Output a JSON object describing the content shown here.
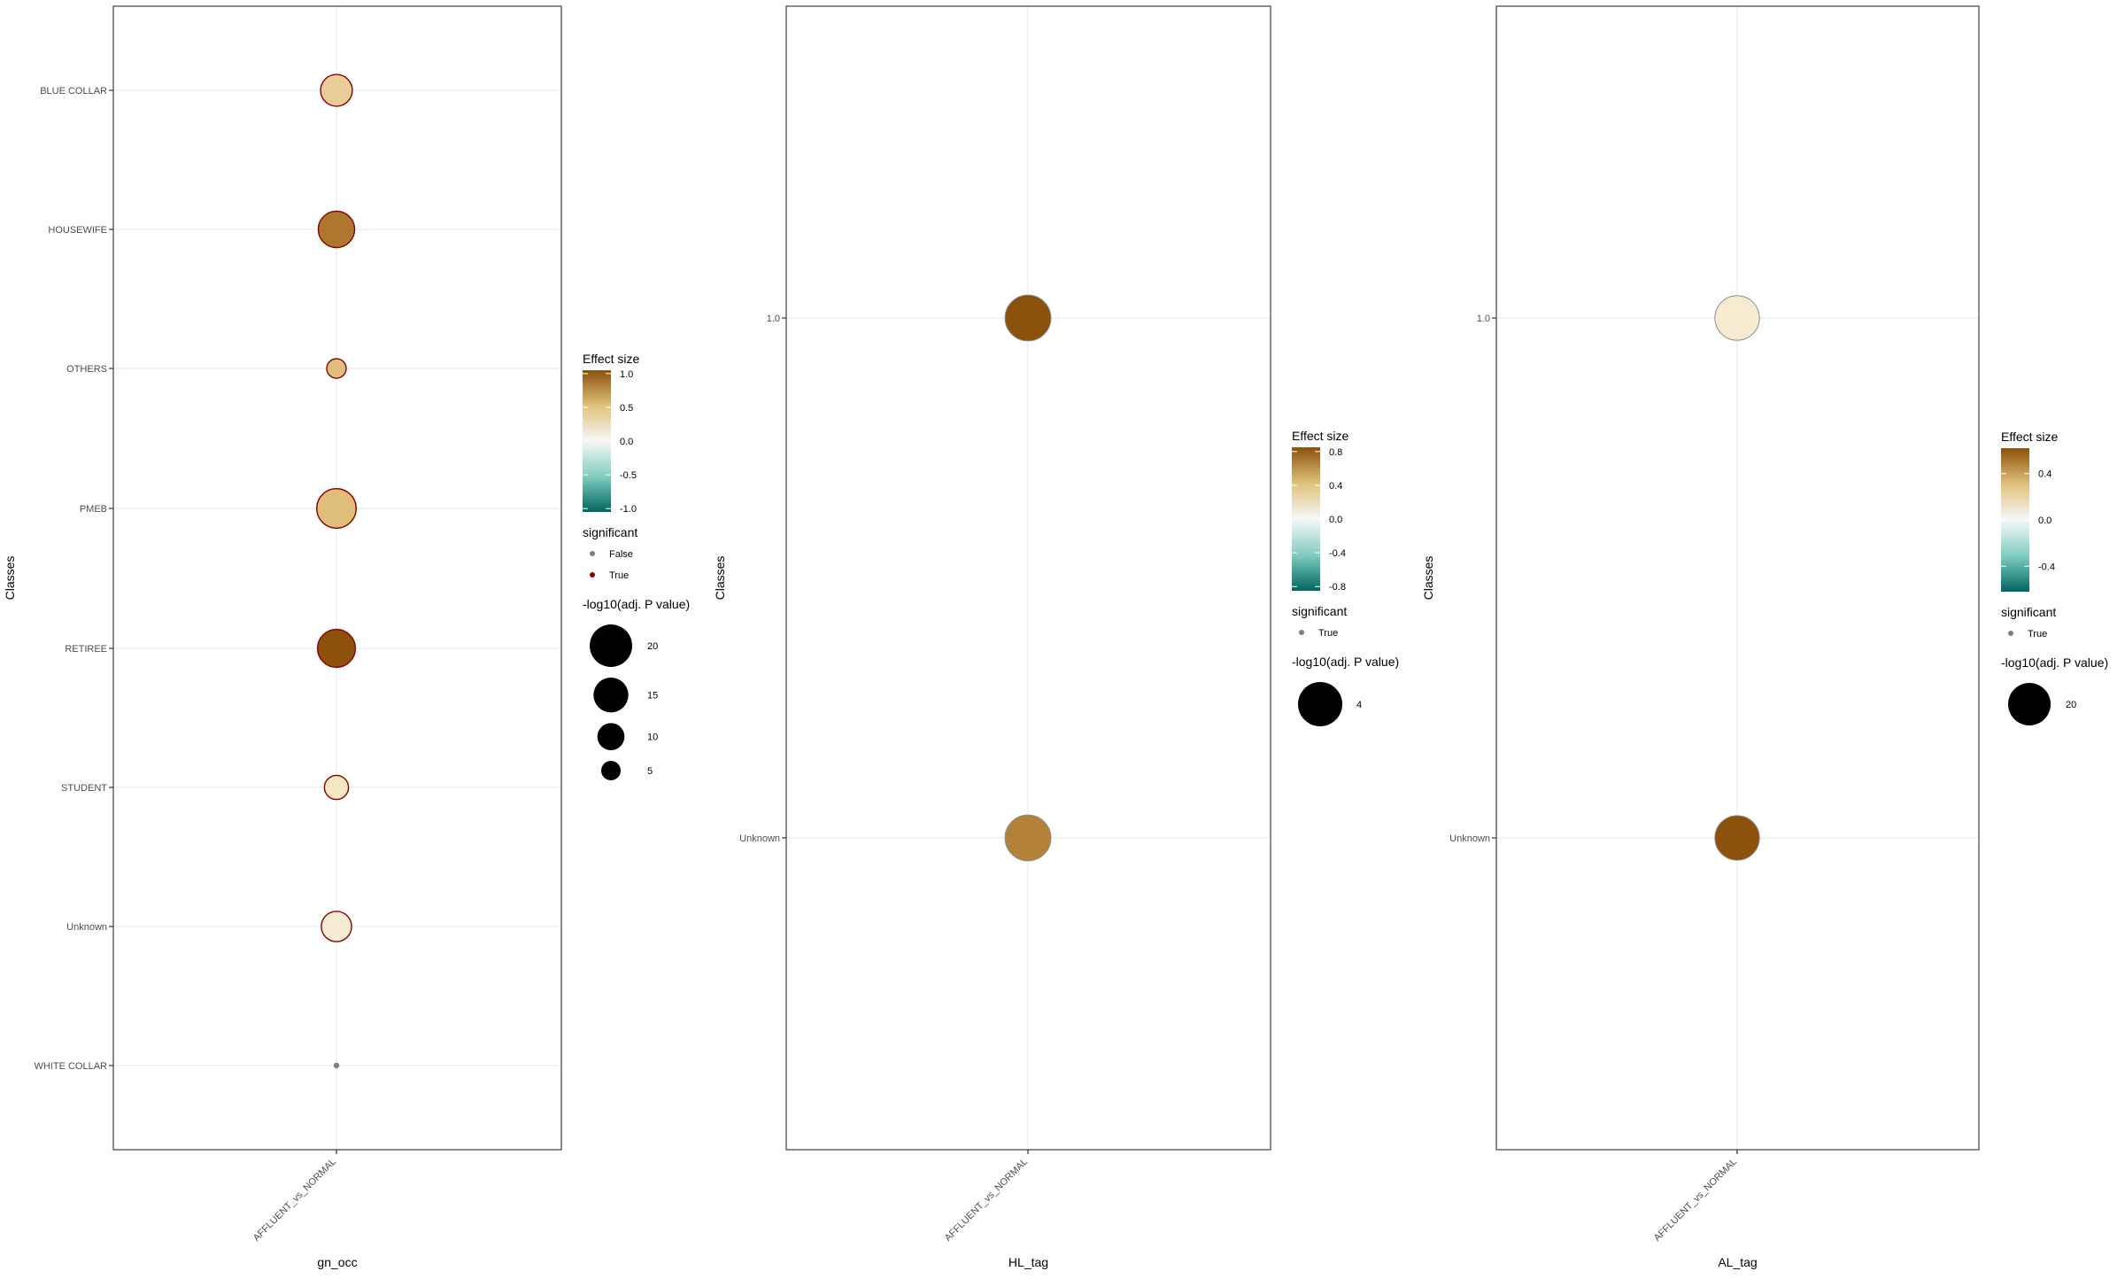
{
  "chart_data": [
    {
      "type": "scatter",
      "xlabel": "gn_occ",
      "ylabel": "Classes",
      "categories_x": [
        "AFFLUENT_vs_NORMAL"
      ],
      "categories_y": [
        "BLUE COLLAR",
        "HOUSEWIFE",
        "OTHERS",
        "PMEB",
        "RETIREE",
        "STUDENT",
        "Unknown",
        "WHITE COLLAR"
      ],
      "points": [
        {
          "x": "AFFLUENT_vs_NORMAL",
          "y": "BLUE COLLAR",
          "effect_size": 0.35,
          "neg_log10_p": 13,
          "significant": "True",
          "color": "#e8cd96"
        },
        {
          "x": "AFFLUENT_vs_NORMAL",
          "y": "HOUSEWIFE",
          "effect_size": 0.85,
          "neg_log10_p": 16,
          "significant": "True",
          "color": "#ad782e"
        },
        {
          "x": "AFFLUENT_vs_NORMAL",
          "y": "OTHERS",
          "effect_size": 0.45,
          "neg_log10_p": 5,
          "significant": "True",
          "color": "#e0be7d"
        },
        {
          "x": "AFFLUENT_vs_NORMAL",
          "y": "PMEB",
          "effect_size": 0.5,
          "neg_log10_p": 18,
          "significant": "True",
          "color": "#dfbd7b"
        },
        {
          "x": "AFFLUENT_vs_NORMAL",
          "y": "RETIREE",
          "effect_size": 1.0,
          "neg_log10_p": 17,
          "significant": "True",
          "color": "#8c510a"
        },
        {
          "x": "AFFLUENT_vs_NORMAL",
          "y": "STUDENT",
          "effect_size": 0.15,
          "neg_log10_p": 8,
          "significant": "True",
          "color": "#f5e6c4"
        },
        {
          "x": "AFFLUENT_vs_NORMAL",
          "y": "Unknown",
          "effect_size": 0.1,
          "neg_log10_p": 12,
          "significant": "True",
          "color": "#f6ecd4"
        },
        {
          "x": "AFFLUENT_vs_NORMAL",
          "y": "WHITE COLLAR",
          "effect_size": 0.0,
          "neg_log10_p": 0.05,
          "significant": "False",
          "color": "#7f7f7f"
        }
      ],
      "legend": {
        "effect_title": "Effect size",
        "effect_ticks": [
          "1.0",
          "0.5",
          "0.0",
          "-0.5",
          "-1.0"
        ],
        "effect_tick_values": [
          1.0,
          0.5,
          0.0,
          -0.5,
          -1.0
        ],
        "effect_range": [
          -1.05,
          1.05
        ],
        "sig_title": "significant",
        "sig_items": [
          {
            "label": "False",
            "color": "#7f7f7f"
          },
          {
            "label": "True",
            "color": "#8b0000"
          }
        ],
        "size_title": "-log10(adj. P value)",
        "size_ticks": [
          "20",
          "15",
          "10",
          "5"
        ],
        "size_tick_values": [
          20,
          15,
          10,
          5
        ]
      }
    },
    {
      "type": "scatter",
      "xlabel": "HL_tag",
      "ylabel": "Classes",
      "categories_x": [
        "AFFLUENT_vs_NORMAL"
      ],
      "categories_y": [
        "1.0",
        "Unknown"
      ],
      "points": [
        {
          "x": "AFFLUENT_vs_NORMAL",
          "y": "1.0",
          "effect_size": 0.85,
          "neg_log10_p": 4.3,
          "significant": "True",
          "color": "#8c510a"
        },
        {
          "x": "AFFLUENT_vs_NORMAL",
          "y": "Unknown",
          "effect_size": 0.65,
          "neg_log10_p": 4.3,
          "significant": "True",
          "color": "#b38138"
        }
      ],
      "legend": {
        "effect_title": "Effect size",
        "effect_ticks": [
          "0.8",
          "0.4",
          "0.0",
          "-0.4",
          "-0.8"
        ],
        "effect_tick_values": [
          0.8,
          0.4,
          0.0,
          -0.4,
          -0.8
        ],
        "effect_range": [
          -0.85,
          0.85
        ],
        "sig_title": "significant",
        "sig_items": [
          {
            "label": "True",
            "color": "#7f7f7f"
          }
        ],
        "size_title": "-log10(adj. P value)",
        "size_ticks": [
          "4"
        ],
        "size_tick_values": [
          4
        ]
      }
    },
    {
      "type": "scatter",
      "xlabel": "AL_tag",
      "ylabel": "Classes",
      "categories_x": [
        "AFFLUENT_vs_NORMAL"
      ],
      "categories_y": [
        "1.0",
        "Unknown"
      ],
      "points": [
        {
          "x": "AFFLUENT_vs_NORMAL",
          "y": "1.0",
          "effect_size": 0.1,
          "neg_log10_p": 22,
          "significant": "True",
          "color": "#f6ead0"
        },
        {
          "x": "AFFLUENT_vs_NORMAL",
          "y": "Unknown",
          "effect_size": 0.6,
          "neg_log10_p": 22,
          "significant": "True",
          "color": "#8c510a"
        }
      ],
      "legend": {
        "effect_title": "Effect size",
        "effect_ticks": [
          "0.4",
          "0.0",
          "-0.4"
        ],
        "effect_tick_values": [
          0.4,
          0.0,
          -0.4
        ],
        "effect_range": [
          -0.62,
          0.62
        ],
        "sig_title": "significant",
        "sig_items": [
          {
            "label": "True",
            "color": "#7f7f7f"
          }
        ],
        "size_title": "-log10(adj. P value)",
        "size_ticks": [
          "20"
        ],
        "size_tick_values": [
          20
        ]
      }
    }
  ]
}
